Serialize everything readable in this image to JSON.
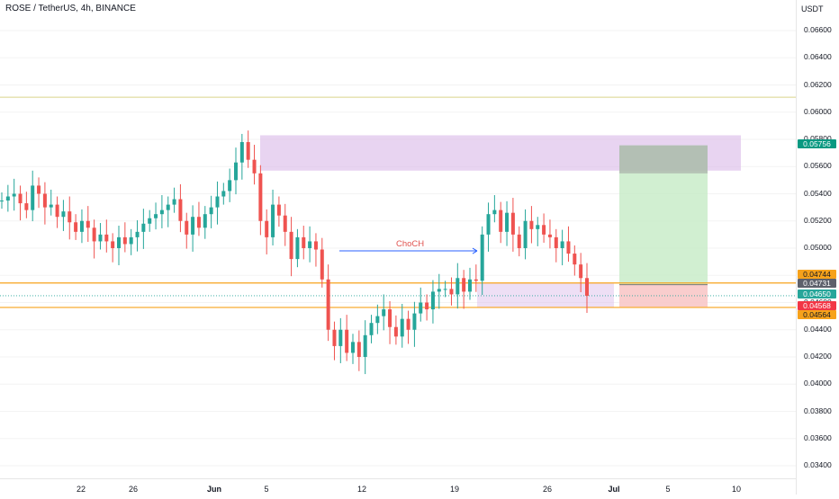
{
  "header": {
    "title": "ROSE / TetherUS, 4h, BINANCE"
  },
  "axis": {
    "unit": "USDT",
    "ticks": [
      "0.06600",
      "0.06400",
      "0.06200",
      "0.06000",
      "0.05800",
      "0.05600",
      "0.05400",
      "0.05200",
      "0.05000",
      "0.04800",
      "0.04600",
      "0.04400",
      "0.04200",
      "0.04000",
      "0.03800",
      "0.03600",
      "0.03400"
    ]
  },
  "xaxis": {
    "ticks": [
      {
        "label": "22",
        "bold": false
      },
      {
        "label": "26",
        "bold": false
      },
      {
        "label": "Jun",
        "bold": true
      },
      {
        "label": "5",
        "bold": false
      },
      {
        "label": "12",
        "bold": false
      },
      {
        "label": "19",
        "bold": false
      },
      {
        "label": "26",
        "bold": false
      },
      {
        "label": "Jul",
        "bold": true
      },
      {
        "label": "5",
        "bold": false
      },
      {
        "label": "10",
        "bold": false
      }
    ]
  },
  "annotation": {
    "text": "ChoCH"
  },
  "price_labels": {
    "target": "0.05756",
    "upper_level": "0.04744",
    "entry": "0.04731",
    "last_price": "0.04650",
    "stop": "0.04568",
    "lower_level": "0.04564"
  },
  "colors": {
    "up": "#26a69a",
    "down": "#ef5350",
    "level": "#f7a21b",
    "zone": "#d9b8e8",
    "target_badge": "#089981",
    "stop_badge": "#f23645"
  },
  "chart_data": {
    "type": "candlestick",
    "symbol": "ROSE / TetherUS",
    "interval": "4h",
    "exchange": "BINANCE",
    "y_unit": "USDT",
    "ylim": [
      0.0334,
      0.0676
    ],
    "horizontal_levels": [
      0.0611,
      0.04744,
      0.04564
    ],
    "supply_zone": [
      0.0557,
      0.0583
    ],
    "long_position": {
      "entry": 0.04731,
      "target": 0.05756,
      "stop": 0.04568
    },
    "price_path": [
      0.0535,
      0.0538,
      0.054,
      0.0533,
      0.0528,
      0.0546,
      0.054,
      0.053,
      0.0532,
      0.0523,
      0.0527,
      0.0519,
      0.0512,
      0.052,
      0.0515,
      0.0505,
      0.051,
      0.0505,
      0.05,
      0.0508,
      0.0503,
      0.0508,
      0.0512,
      0.0518,
      0.0522,
      0.0525,
      0.0528,
      0.0532,
      0.0536,
      0.052,
      0.051,
      0.0523,
      0.0515,
      0.0525,
      0.053,
      0.0538,
      0.0542,
      0.055,
      0.0563,
      0.0578,
      0.0565,
      0.0555,
      0.052,
      0.0508,
      0.0532,
      0.0524,
      0.0512,
      0.0492,
      0.0508,
      0.05,
      0.0505,
      0.0499,
      0.0477,
      0.044,
      0.0428,
      0.044,
      0.0423,
      0.0431,
      0.042,
      0.0436,
      0.0445,
      0.045,
      0.0455,
      0.0442,
      0.0435,
      0.0448,
      0.044,
      0.0452,
      0.046,
      0.0455,
      0.0468,
      0.047,
      0.047,
      0.0466,
      0.0478,
      0.0468,
      0.0477,
      0.0476,
      0.051,
      0.0525,
      0.0528,
      0.0512,
      0.0526,
      0.051,
      0.05,
      0.052,
      0.0514,
      0.0517,
      0.051,
      0.0508,
      0.05,
      0.0505,
      0.0496,
      0.0488,
      0.0478,
      0.0465
    ]
  }
}
